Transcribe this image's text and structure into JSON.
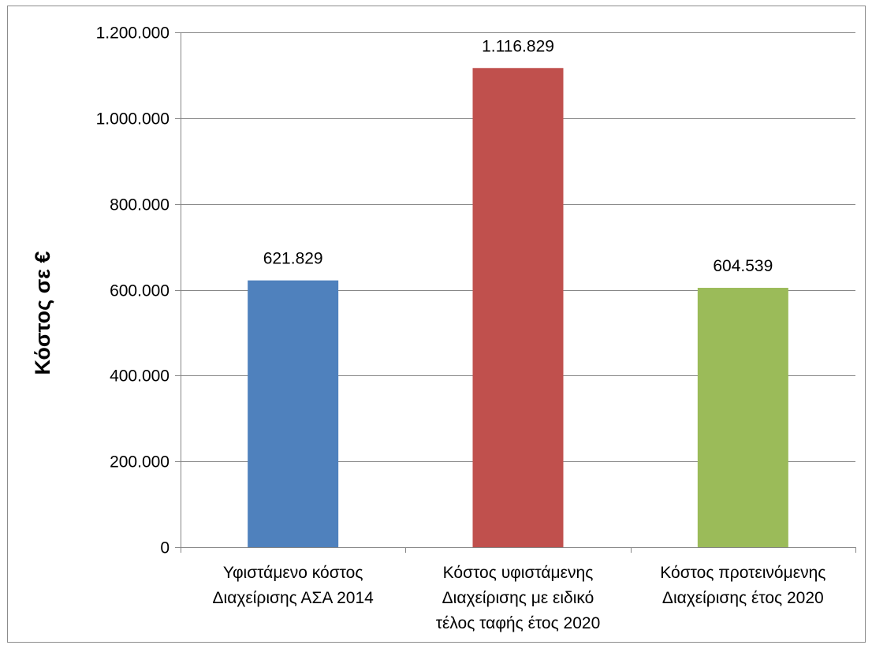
{
  "chart_data": {
    "type": "bar",
    "title": "",
    "xlabel": "",
    "ylabel": "Κόστος σε €",
    "ylim": [
      0,
      1200000
    ],
    "yticks": [
      0,
      200000,
      400000,
      600000,
      800000,
      1000000,
      1200000
    ],
    "ytick_labels": [
      "0",
      "200.000",
      "400.000",
      "600.000",
      "800.000",
      "1.000.000",
      "1.200.000"
    ],
    "grid": true,
    "legend": "none",
    "categories": [
      [
        "Υφιστάμενο κόστος",
        "Διαχείρισης ΑΣΑ 2014"
      ],
      [
        "Κόστος υφιστάμενης",
        "Διαχείρισης με ειδικό",
        "τέλος ταφής έτος 2020"
      ],
      [
        "Κόστος προτεινόμενης",
        "Διαχείρισης έτος 2020"
      ]
    ],
    "values": [
      621829,
      1116829,
      604539
    ],
    "value_labels": [
      "621.829",
      "1.116.829",
      "604.539"
    ],
    "colors": [
      "#4f81bd",
      "#c0504d",
      "#9bbb59"
    ],
    "gridline_color": "#868686",
    "axis_color": "#868686"
  }
}
